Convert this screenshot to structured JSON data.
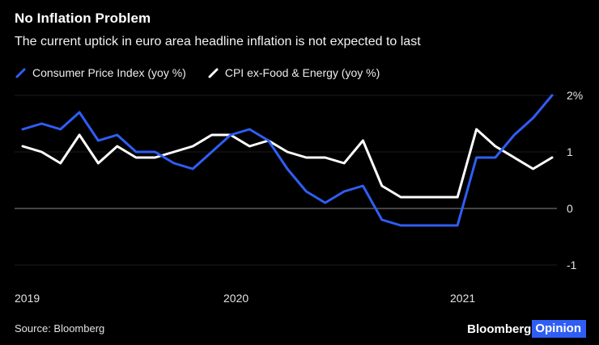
{
  "header": {
    "title": "No Inflation Problem",
    "subtitle": "The current uptick in euro area headline inflation is not expected to last"
  },
  "legend": [
    {
      "label": "Consumer Price Index (yoy %)",
      "color": "#2f5ef5"
    },
    {
      "label": "CPI ex-Food & Energy (yoy %)",
      "color": "#ffffff"
    }
  ],
  "axes": {
    "y_labels": [
      "2%",
      "1",
      "0",
      "-1"
    ],
    "x_labels": [
      "2019",
      "2020",
      "2021"
    ]
  },
  "footer": {
    "source": "Source: Bloomberg",
    "logo_primary": "Bloomberg",
    "logo_secondary": "Opinion"
  },
  "colors": {
    "background": "#000000",
    "accent_blue": "#2f5ef5",
    "zero_line": "#8a8a8a",
    "gridline": "#1c1c1c"
  },
  "chart_data": {
    "type": "line",
    "title": "No Inflation Problem",
    "subtitle": "The current uptick in euro area headline inflation is not expected to last",
    "xlabel": "",
    "ylabel": "yoy %",
    "ylim": [
      -1.4,
      2.3
    ],
    "gridlines": [
      2,
      1,
      0,
      -1
    ],
    "legend_position": "top",
    "x": [
      "2019-01",
      "2019-02",
      "2019-03",
      "2019-04",
      "2019-05",
      "2019-06",
      "2019-07",
      "2019-08",
      "2019-09",
      "2019-10",
      "2019-11",
      "2019-12",
      "2020-01",
      "2020-02",
      "2020-03",
      "2020-04",
      "2020-05",
      "2020-06",
      "2020-07",
      "2020-08",
      "2020-09",
      "2020-10",
      "2020-11",
      "2020-12",
      "2021-01",
      "2021-02",
      "2021-03",
      "2021-04",
      "2021-05"
    ],
    "x_tick_labels": [
      "2019",
      "2020",
      "2021"
    ],
    "x_tick_positions": [
      0,
      12,
      24
    ],
    "series": [
      {
        "id": "cpi",
        "name": "Consumer Price Index (yoy %)",
        "color": "#2f5ef5",
        "values": [
          1.4,
          1.5,
          1.4,
          1.7,
          1.2,
          1.3,
          1.0,
          1.0,
          0.8,
          0.7,
          1.0,
          1.3,
          1.4,
          1.2,
          0.7,
          0.3,
          0.1,
          0.3,
          0.4,
          -0.2,
          -0.3,
          -0.3,
          -0.3,
          -0.3,
          0.9,
          0.9,
          1.3,
          1.6,
          2.0
        ]
      },
      {
        "id": "core-cpi",
        "name": "CPI ex-Food & Energy (yoy %)",
        "color": "#ffffff",
        "values": [
          1.1,
          1.0,
          0.8,
          1.3,
          0.8,
          1.1,
          0.9,
          0.9,
          1.0,
          1.1,
          1.3,
          1.3,
          1.1,
          1.2,
          1.0,
          0.9,
          0.9,
          0.8,
          1.2,
          0.4,
          0.2,
          0.2,
          0.2,
          0.2,
          1.4,
          1.1,
          0.9,
          0.7,
          0.9
        ]
      }
    ]
  }
}
